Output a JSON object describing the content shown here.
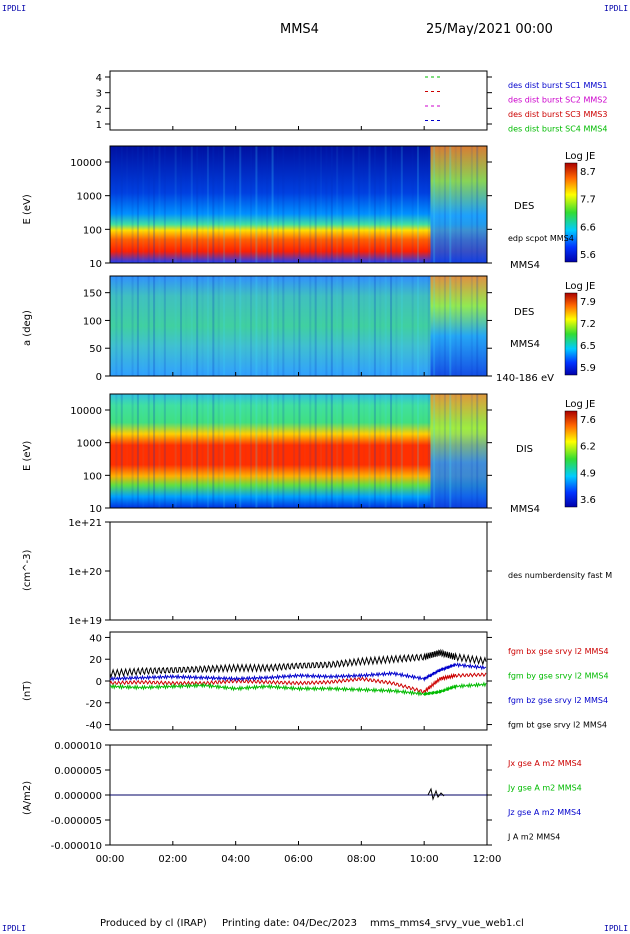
{
  "header": {
    "corner_label": "IPDLI",
    "spacecraft": "MMS4",
    "date": "25/May/2021 00:00"
  },
  "footer": {
    "produced_by": "Produced by cl (IRAP)",
    "printing_date": "Printing date: 04/Dec/2023",
    "filename": "mms_mms4_srvy_vue_web1.cl"
  },
  "time_axis": [
    "00:00",
    "02:00",
    "04:00",
    "06:00",
    "08:00",
    "10:00",
    "12:00"
  ],
  "chart_data": [
    {
      "type": "scatter",
      "panel": "burst",
      "y_ticks": [
        "4",
        "3",
        "2",
        "1"
      ],
      "legend": [
        {
          "label": "des dist burst SC1 MMS1",
          "color": "#0000cc"
        },
        {
          "label": "des dist burst SC2 MMS2",
          "color": "#cc00cc"
        },
        {
          "label": "des dist burst SC3 MMS3",
          "color": "#cc0000"
        },
        {
          "label": "des dist burst SC4 MMS4",
          "color": "#00bb00"
        }
      ]
    },
    {
      "type": "heatmap",
      "panel": "des_energy",
      "ylabel": "E (eV)",
      "y_ticks": [
        "10000",
        "1000",
        "100",
        "10"
      ],
      "right_labels": [
        "DES",
        "edp scpot MMS4",
        "MMS4"
      ],
      "colorbar": {
        "title": "Log JE",
        "ticks": [
          "8.7",
          "7.7",
          "6.6",
          "5.6"
        ]
      }
    },
    {
      "type": "heatmap",
      "panel": "des_pitch",
      "ylabel": "a (deg)",
      "y_ticks": [
        "150",
        "100",
        "50",
        "0"
      ],
      "right_labels": [
        "DES",
        "MMS4",
        "140-186 eV"
      ],
      "colorbar": {
        "title": "Log JE",
        "ticks": [
          "7.9",
          "7.2",
          "6.5",
          "5.9"
        ]
      }
    },
    {
      "type": "heatmap",
      "panel": "dis_energy",
      "ylabel": "E (eV)",
      "y_ticks": [
        "10000",
        "1000",
        "100",
        "10"
      ],
      "right_labels": [
        "DIS",
        "MMS4"
      ],
      "colorbar": {
        "title": "Log JE",
        "ticks": [
          "7.6",
          "6.2",
          "4.9",
          "3.6"
        ]
      }
    },
    {
      "type": "line",
      "panel": "density",
      "ylabel": "(cm^-3)",
      "y_ticks": [
        "1e+21",
        "1e+20",
        "1e+19"
      ],
      "legend": [
        {
          "label": "des numberdensity fast M",
          "color": "#000000"
        }
      ]
    },
    {
      "type": "line",
      "panel": "magnetic_field",
      "ylabel": "(nT)",
      "y_ticks": [
        "40",
        "20",
        "0",
        "-20",
        "-40"
      ],
      "ylim": [
        -45,
        45
      ],
      "legend": [
        {
          "label": "fgm bx gse srvy l2 MMS4",
          "color": "#cc0000"
        },
        {
          "label": "fgm by gse srvy l2 MMS4",
          "color": "#00bb00"
        },
        {
          "label": "fgm bz gse srvy l2 MMS4",
          "color": "#0000cc"
        },
        {
          "label": "fgm bt gse srvy l2 MMS4",
          "color": "#000000"
        }
      ],
      "series": [
        {
          "name": "fgm bx gse srvy l2 MMS4",
          "x": [
            0,
            1,
            2,
            3,
            4,
            5,
            6,
            7,
            8,
            9,
            10,
            10.5,
            11,
            12
          ],
          "values": [
            -2,
            -1,
            -2,
            -2,
            0,
            -1,
            -2,
            -1,
            2,
            -2,
            -10,
            2,
            5,
            6
          ]
        },
        {
          "name": "fgm by gse srvy l2 MMS4",
          "x": [
            0,
            1,
            2,
            3,
            4,
            5,
            6,
            7,
            8,
            9,
            10,
            10.5,
            11,
            12
          ],
          "values": [
            -5,
            -6,
            -5,
            -4,
            -7,
            -5,
            -7,
            -7,
            -8,
            -9,
            -12,
            -10,
            -5,
            -3
          ]
        },
        {
          "name": "fgm bz gse srvy l2 MMS4",
          "x": [
            0,
            1,
            2,
            3,
            4,
            5,
            6,
            7,
            8,
            9,
            10,
            10.5,
            11,
            12
          ],
          "values": [
            2,
            3,
            4,
            3,
            2,
            3,
            5,
            4,
            5,
            7,
            2,
            10,
            15,
            12
          ]
        },
        {
          "name": "fgm bt gse srvy l2 MMS4",
          "x": [
            0,
            1,
            2,
            3,
            4,
            5,
            6,
            7,
            8,
            9,
            10,
            10.5,
            11,
            12
          ],
          "values": [
            7,
            9,
            10,
            11,
            12,
            12,
            14,
            15,
            18,
            20,
            22,
            26,
            22,
            18
          ]
        }
      ]
    },
    {
      "type": "line",
      "panel": "current_density",
      "ylabel": "(A/m2)",
      "y_ticks": [
        "0.000010",
        "0.000005",
        "0.000000",
        "-0.000005",
        "-0.000010"
      ],
      "legend": [
        {
          "label": "Jx gse A m2 MMS4",
          "color": "#cc0000"
        },
        {
          "label": "Jy gse A m2 MMS4",
          "color": "#00bb00"
        },
        {
          "label": "Jz gse A m2 MMS4",
          "color": "#0000cc"
        },
        {
          "label": "J A m2 MMS4",
          "color": "#000000"
        }
      ]
    }
  ]
}
